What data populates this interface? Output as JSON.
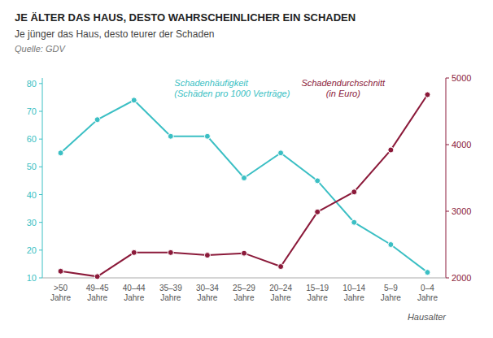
{
  "chart_data": {
    "type": "line",
    "title": "JE ÄLTER DAS HAUS, DESTO WAHRSCHEINLICHER EIN SCHADEN",
    "subtitle": "Je jünger das Haus, desto teurer der Schaden",
    "source": "Quelle: GDV",
    "xlabel": "Hausalter",
    "categories": [
      ">50\nJahre",
      "49–45\nJahre",
      "40–44\nJahre",
      "35–39\nJahre",
      "30–34\nJahre",
      "25–29\nJahre",
      "20–24\nJahre",
      "15–19\nJahre",
      "10–14\nJahre",
      "5–9\nJahre",
      "0–4\nJahre"
    ],
    "series": [
      {
        "name": "Schadenhäufigkeit\n(Schäden pro 1000 Verträge)",
        "color": "#3bbfc4",
        "marker": "circle",
        "values": [
          55,
          67,
          74,
          61,
          61,
          46,
          55,
          45,
          30,
          22,
          12
        ]
      },
      {
        "name": "Schadendurchschnitt\n(in Euro)",
        "color": "#8b1a3a",
        "marker": "circle",
        "axis": "y2",
        "values": [
          2100,
          2020,
          2380,
          2380,
          2340,
          2370,
          2170,
          2990,
          3290,
          3920,
          4750
        ]
      }
    ],
    "ylim": [
      10,
      82
    ],
    "yticks": [
      10,
      20,
      30,
      40,
      50,
      60,
      70,
      80
    ],
    "y2lim": [
      2000,
      5000
    ],
    "y2ticks": [
      2000,
      3000,
      4000,
      5000
    ],
    "grid": false
  }
}
